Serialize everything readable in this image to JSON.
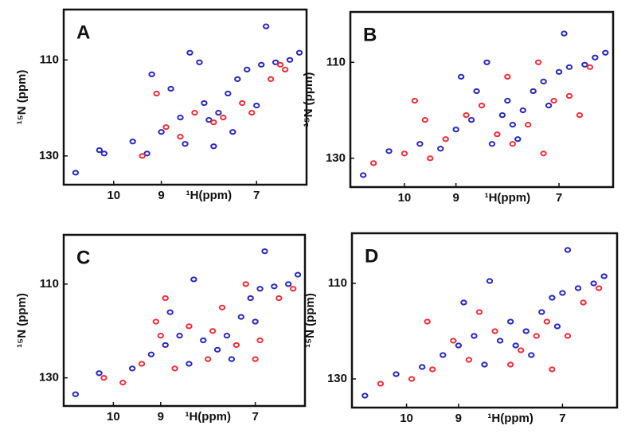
{
  "chart_data": [
    {
      "type": "scatter",
      "title": "A",
      "x_label": "¹H(ppm)",
      "y_label": "¹⁵N (ppm)",
      "xlim": [
        11.05,
        5.95
      ],
      "ylim": [
        99.5,
        136
      ],
      "xticks": [
        10,
        9,
        7
      ],
      "yticks": [
        110,
        130
      ],
      "series": [
        {
          "color": "#2b2bb5",
          "x": [
            10.8,
            10.3,
            10.2,
            9.6,
            9.3,
            9.0,
            8.6,
            8.4,
            8.2,
            8.0,
            7.8,
            7.6,
            7.4,
            7.2,
            6.9,
            6.6,
            6.3,
            6.1,
            8.8,
            8.5,
            7.5,
            6.8,
            9.2,
            7.9,
            8.1,
            7.0
          ],
          "values": [
            133.5,
            128.8,
            129.5,
            127,
            129.5,
            125,
            122,
            108.5,
            110.5,
            122.5,
            121,
            117,
            114,
            112,
            111,
            110.5,
            110,
            108.5,
            116,
            127.5,
            125,
            103,
            113,
            128,
            119,
            119.5
          ]
        },
        {
          "color": "#e8323c",
          "x": [
            9.4,
            8.9,
            8.3,
            7.9,
            7.7,
            7.3,
            6.7,
            6.4,
            8.6,
            9.1,
            7.1,
            6.5
          ],
          "values": [
            130,
            124,
            121,
            123,
            122,
            119,
            114,
            112,
            126,
            117,
            121,
            111
          ]
        }
      ]
    },
    {
      "type": "scatter",
      "title": "B",
      "x_label": "¹H(ppm)",
      "y_label": "¹⁵N (ppm)",
      "xlim": [
        11.05,
        5.95
      ],
      "ylim": [
        99.5,
        136
      ],
      "xticks": [
        10,
        9,
        7
      ],
      "yticks": [
        110,
        130
      ],
      "series": [
        {
          "color": "#2b2bb5",
          "x": [
            10.8,
            10.3,
            9.7,
            9.3,
            9.0,
            8.7,
            8.4,
            8.1,
            7.9,
            7.7,
            7.5,
            7.3,
            7.0,
            6.8,
            6.5,
            6.3,
            6.1,
            8.3,
            8.6,
            7.2,
            8.9,
            6.9,
            7.8,
            8.0
          ],
          "values": [
            133.5,
            128.5,
            127,
            128,
            124,
            122,
            110,
            121,
            123,
            120,
            116,
            114,
            112,
            111,
            110.5,
            109,
            108,
            127,
            116,
            119,
            113,
            104,
            126,
            118
          ]
        },
        {
          "color": "#e8323c",
          "x": [
            10.6,
            10.0,
            9.5,
            9.2,
            8.8,
            8.5,
            8.2,
            7.9,
            7.6,
            7.4,
            7.1,
            6.8,
            6.4,
            9.8,
            8.0,
            7.3,
            9.6,
            6.6
          ],
          "values": [
            131,
            129,
            130,
            126,
            121,
            119,
            125,
            127,
            123,
            110,
            118,
            117,
            111,
            118,
            113,
            129,
            122,
            121
          ]
        }
      ]
    },
    {
      "type": "scatter",
      "title": "C",
      "x_label": "¹H(ppm)",
      "y_label": "¹⁵N (ppm)",
      "xlim": [
        11.05,
        5.95
      ],
      "ylim": [
        99.5,
        136
      ],
      "xticks": [
        10,
        9,
        7
      ],
      "yticks": [
        110,
        130
      ],
      "series": [
        {
          "color": "#2b2bb5",
          "x": [
            10.8,
            10.3,
            9.6,
            9.2,
            8.9,
            8.6,
            8.3,
            8.1,
            7.8,
            7.6,
            7.3,
            7.1,
            6.9,
            6.6,
            6.3,
            6.1,
            8.4,
            7.5,
            8.8,
            7.0,
            6.8
          ],
          "values": [
            133.5,
            129,
            128,
            125,
            123,
            121,
            109,
            122,
            124,
            121,
            117,
            113,
            111,
            110.5,
            110,
            108,
            127,
            126,
            116,
            118,
            103
          ]
        },
        {
          "color": "#e8323c",
          "x": [
            10.2,
            9.8,
            9.4,
            9.0,
            8.7,
            8.4,
            8.0,
            7.7,
            7.4,
            7.2,
            6.9,
            6.5,
            8.9,
            7.9,
            7.0,
            9.1,
            6.2
          ],
          "values": [
            130,
            131,
            127,
            121,
            128,
            119,
            126,
            115,
            123,
            110,
            122,
            113,
            113,
            120,
            126,
            118,
            111
          ]
        }
      ]
    },
    {
      "type": "scatter",
      "title": "D",
      "x_label": "¹H(ppm)",
      "y_label": "¹⁵N (ppm)",
      "xlim": [
        11.05,
        5.95
      ],
      "ylim": [
        99.5,
        136
      ],
      "xticks": [
        10,
        9,
        7
      ],
      "yticks": [
        110,
        130
      ],
      "series": [
        {
          "color": "#2b2bb5",
          "x": [
            10.8,
            10.2,
            9.7,
            9.3,
            9.0,
            8.7,
            8.4,
            8.2,
            7.9,
            7.7,
            7.4,
            7.2,
            7.0,
            6.7,
            6.4,
            6.2,
            8.5,
            7.6,
            8.9,
            7.1,
            6.9,
            8.0
          ],
          "values": [
            133.5,
            129,
            127.5,
            125,
            123,
            121,
            109.5,
            122,
            123,
            120,
            116,
            113,
            112,
            111,
            110,
            108.5,
            127,
            125,
            114,
            119,
            103,
            118
          ]
        },
        {
          "color": "#e8323c",
          "x": [
            10.5,
            9.9,
            9.5,
            9.1,
            8.8,
            8.3,
            8.0,
            7.8,
            7.5,
            7.3,
            6.9,
            6.6,
            9.6,
            8.6,
            7.2,
            6.3
          ],
          "values": [
            131,
            130,
            128,
            122,
            126,
            120,
            127,
            124,
            121,
            118,
            121,
            114,
            118,
            116,
            128,
            111
          ]
        }
      ]
    }
  ]
}
